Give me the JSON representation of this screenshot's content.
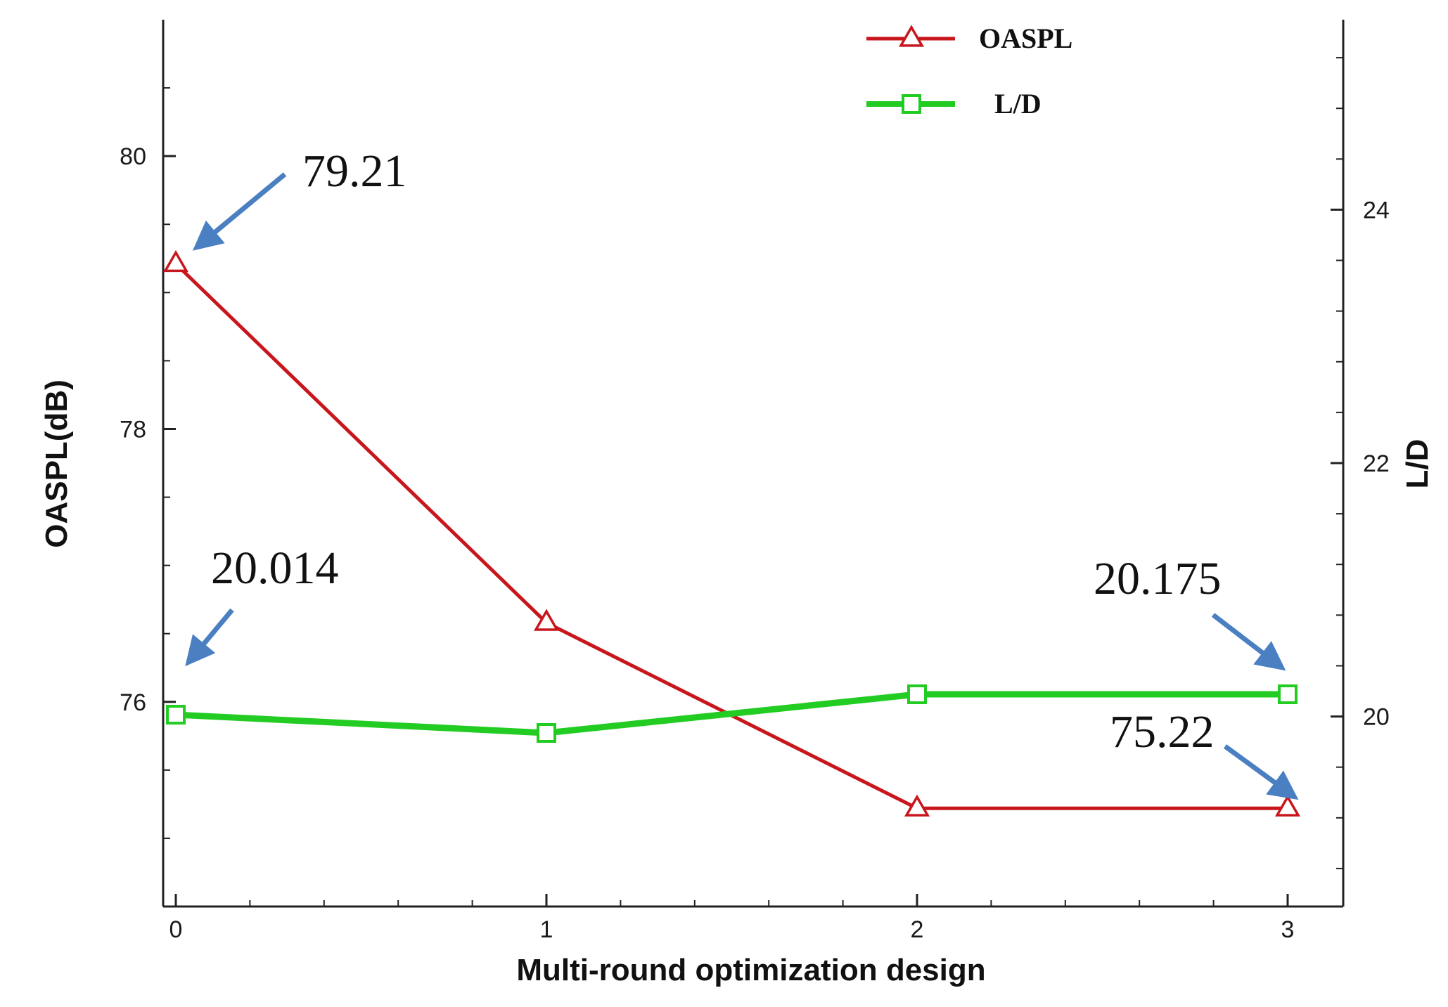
{
  "chart_data": {
    "type": "line",
    "x": [
      0,
      1,
      2,
      3
    ],
    "xlabel": "Multi-round optimization design",
    "ylabel": "OASPL(dB)",
    "y2label": "L/D",
    "xlim": [
      0,
      3.1
    ],
    "ylim": [
      74.5,
      81
    ],
    "y2lim": [
      18.5,
      25.5
    ],
    "xticks": [
      "0",
      "1",
      "2",
      "3"
    ],
    "yticks": [
      76,
      78,
      80
    ],
    "y2ticks": [
      20,
      22,
      24
    ],
    "grid": false,
    "legend_position": "top-center",
    "series": [
      {
        "name": "OASPL",
        "axis": "left",
        "marker": "triangle",
        "color": "#c8161d",
        "values": [
          79.21,
          76.58,
          75.22,
          75.22
        ]
      },
      {
        "name": "L/D",
        "axis": "right",
        "marker": "square",
        "color": "#22cc22",
        "values": [
          20.014,
          19.87,
          20.175,
          20.175
        ]
      }
    ],
    "annotations": [
      {
        "text": "79.21",
        "series": 0,
        "point": 0
      },
      {
        "text": "20.014",
        "series": 1,
        "point": 0
      },
      {
        "text": "20.175",
        "series": 1,
        "point": 3
      },
      {
        "text": "75.22",
        "series": 0,
        "point": 3
      }
    ],
    "annotation_arrow_color": "#4a7fc1"
  }
}
